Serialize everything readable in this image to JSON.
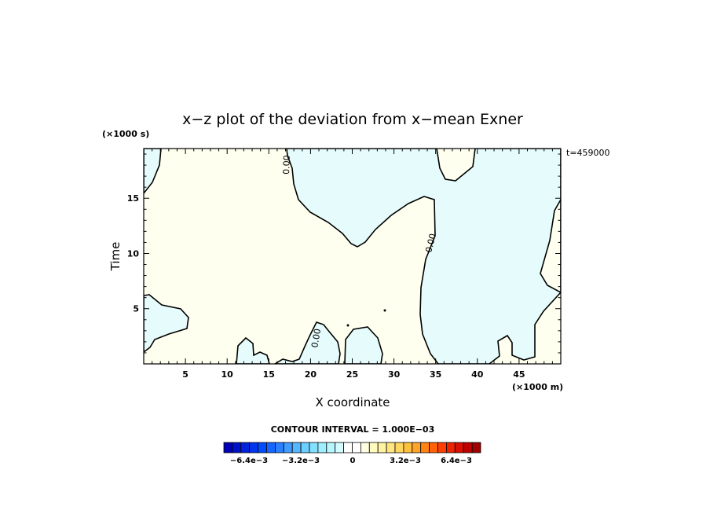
{
  "chart_data": {
    "type": "contour",
    "title": "x−z plot of the deviation from x−mean Exner",
    "xlabel": "X coordinate",
    "ylabel": "Time",
    "x_unit_label": "(×1000 m)",
    "y_unit_label": "(×1000 s)",
    "time_stamp": "t=459000",
    "xlim": [
      0,
      50
    ],
    "ylim": [
      0,
      19.5
    ],
    "x_ticks": [
      5,
      10,
      15,
      20,
      25,
      30,
      35,
      40,
      45
    ],
    "y_ticks": [
      5,
      10,
      15
    ],
    "contour_interval": "CONTOUR INTERVAL = 1.000E−03",
    "contour_labels": [
      "0.00",
      "0.00",
      "0.00"
    ],
    "region_colors": {
      "positive": "#fffff0",
      "negative": "#e6fcfc"
    },
    "colorbar": {
      "labels": [
        "−6.4e−3",
        "−3.2e−3",
        "0",
        "3.2e−3",
        "6.4e−3"
      ],
      "colors": [
        "#0000b4",
        "#0010c8",
        "#0022dc",
        "#0036ee",
        "#004cff",
        "#1466ff",
        "#2a80ff",
        "#409cff",
        "#56b6ff",
        "#6ccfff",
        "#84e0ff",
        "#9eeeff",
        "#b8f6ff",
        "#d4fbff",
        "#ffffff",
        "#ffffff",
        "#fffee0",
        "#fffac0",
        "#fff2a0",
        "#ffe680",
        "#ffd660",
        "#ffc040",
        "#ffa428",
        "#ff8414",
        "#ff6208",
        "#ff4000",
        "#ee2400",
        "#d81000",
        "#c00000",
        "#a00000"
      ]
    }
  }
}
